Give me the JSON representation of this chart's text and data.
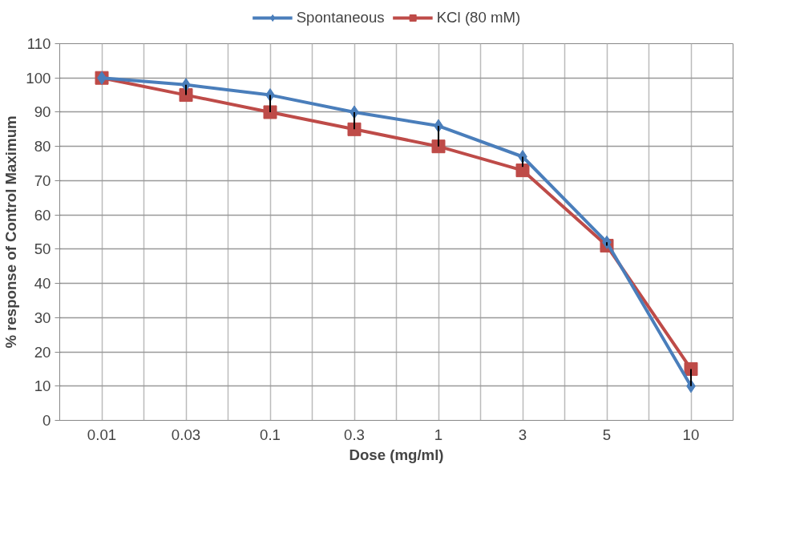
{
  "chart_data": {
    "type": "line",
    "xlabel": "Dose (mg/ml)",
    "ylabel": "% response of Control Maximum",
    "categories": [
      "0.01",
      "0.03",
      "0.1",
      "0.3",
      "1",
      "3",
      "5",
      "10"
    ],
    "series": [
      {
        "name": "Spontaneous",
        "color": "#4a7ebb",
        "marker": "diamond",
        "values": [
          100,
          98,
          95,
          90,
          86,
          77,
          52,
          10
        ],
        "errors": [
          null,
          [
            95,
            98
          ],
          [
            90,
            95
          ],
          [
            85,
            90
          ],
          [
            80,
            86
          ],
          [
            74,
            77
          ],
          [
            51,
            52
          ],
          [
            10,
            15
          ]
        ]
      },
      {
        "name": "KCl (80 mM)",
        "color": "#be4b48",
        "marker": "square",
        "values": [
          100,
          95,
          90,
          85,
          80,
          73,
          51,
          15
        ]
      }
    ],
    "ylim": [
      0,
      110
    ],
    "yticks": [
      0,
      10,
      20,
      30,
      40,
      50,
      60,
      70,
      80,
      90,
      100,
      110
    ],
    "grid": true,
    "legend": "top",
    "line_style": "solid"
  }
}
